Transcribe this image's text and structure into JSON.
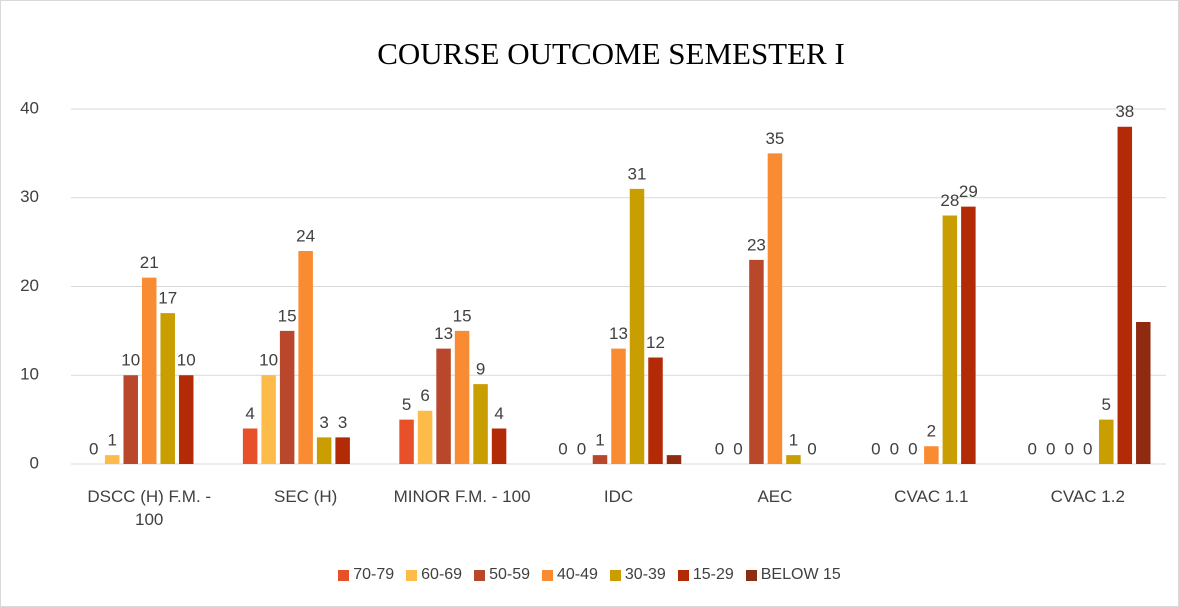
{
  "chart_data": {
    "type": "bar",
    "title": "COURSE OUTCOME SEMESTER I",
    "categories": [
      "DSCC (H) F.M. - 100",
      "SEC (H)",
      "MINOR  F.M. - 100",
      "IDC",
      "AEC",
      "CVAC 1.1",
      "CVAC 1.2"
    ],
    "series": [
      {
        "name": "70-79",
        "color": "#e8502a",
        "values": [
          0,
          4,
          5,
          0,
          0,
          0,
          0
        ]
      },
      {
        "name": "60-69",
        "color": "#fdbb4a",
        "values": [
          1,
          10,
          6,
          0,
          0,
          0,
          0
        ]
      },
      {
        "name": "50-59",
        "color": "#b8472b",
        "values": [
          10,
          15,
          13,
          1,
          23,
          0,
          0
        ]
      },
      {
        "name": "40-49",
        "color": "#f98c32",
        "values": [
          21,
          24,
          15,
          13,
          35,
          2,
          0
        ]
      },
      {
        "name": "30-39",
        "color": "#c89e00",
        "values": [
          17,
          3,
          9,
          31,
          1,
          28,
          5
        ]
      },
      {
        "name": "15-29",
        "color": "#b32a06",
        "values": [
          10,
          3,
          4,
          12,
          0,
          29,
          38
        ]
      },
      {
        "name": "BELOW 15",
        "color": "#8e2b10",
        "values": [
          null,
          null,
          null,
          1,
          null,
          null,
          16
        ],
        "show_labels": false
      }
    ],
    "ylim": [
      0,
      40
    ],
    "yticks": [
      0,
      10,
      20,
      30,
      40
    ],
    "grid": true,
    "legend": "bottom"
  }
}
